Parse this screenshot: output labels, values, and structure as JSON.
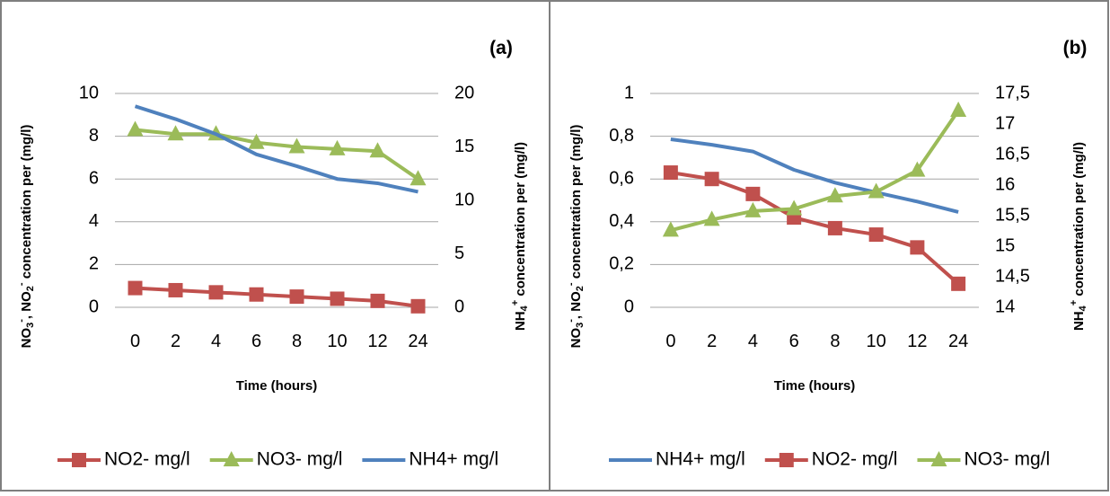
{
  "chart_data": [
    {
      "type": "line",
      "panel_label": "(a)",
      "categories": [
        "0",
        "2",
        "4",
        "6",
        "8",
        "10",
        "12",
        "24"
      ],
      "xlabel": "Time (hours)",
      "ylabel_left": "NO3-, NO2- concentration per (mg/l)",
      "ylabel_right": "NH4+ concentration per (mg/l)",
      "ylim_left": [
        0,
        10
      ],
      "ylim_right": [
        0,
        20
      ],
      "yticks_left": [
        "0",
        "2",
        "4",
        "6",
        "8",
        "10"
      ],
      "yticks_right": [
        "0",
        "5",
        "10",
        "15",
        "20"
      ],
      "grid": true,
      "legend_position": "bottom",
      "series": [
        {
          "name": "NO2- mg/l",
          "axis": "left",
          "marker": "square",
          "color": "#C0504D",
          "values": [
            0.9,
            0.8,
            0.7,
            0.6,
            0.5,
            0.4,
            0.3,
            0.05
          ]
        },
        {
          "name": "NO3- mg/l",
          "axis": "left",
          "marker": "triangle",
          "color": "#9BBB59",
          "values": [
            8.3,
            8.1,
            8.1,
            7.7,
            7.5,
            7.4,
            7.3,
            6.0
          ]
        },
        {
          "name": "NH4+ mg/l",
          "axis": "right",
          "marker": "none",
          "color": "#4F81BD",
          "values": [
            18.8,
            17.6,
            16.2,
            14.3,
            13.2,
            12.0,
            11.6,
            10.8
          ]
        }
      ]
    },
    {
      "type": "line",
      "panel_label": "(b)",
      "categories": [
        "0",
        "2",
        "4",
        "6",
        "8",
        "10",
        "12",
        "24"
      ],
      "xlabel": "Time (hours)",
      "ylabel_left": "NO3-, NO2- concentration per (mg/l)",
      "ylabel_right": "NH4+ concentration per (mg/l)",
      "ylim_left": [
        0,
        1
      ],
      "ylim_right": [
        14,
        17.5
      ],
      "yticks_left": [
        "0",
        "0,2",
        "0,4",
        "0,6",
        "0,8",
        "1"
      ],
      "yticks_right": [
        "14",
        "14,5",
        "15",
        "15,5",
        "16",
        "16,5",
        "17",
        "17,5"
      ],
      "grid": true,
      "legend_position": "bottom",
      "series": [
        {
          "name": "NH4+ mg/l",
          "axis": "right",
          "marker": "none",
          "color": "#4F81BD",
          "values": [
            16.75,
            16.66,
            16.55,
            16.25,
            16.04,
            15.88,
            15.73,
            15.56
          ]
        },
        {
          "name": "NO2- mg/l",
          "axis": "left",
          "marker": "square",
          "color": "#C0504D",
          "values": [
            0.63,
            0.6,
            0.53,
            0.42,
            0.37,
            0.34,
            0.28,
            0.11
          ]
        },
        {
          "name": "NO3- mg/l",
          "axis": "left",
          "marker": "triangle",
          "color": "#9BBB59",
          "values": [
            0.36,
            0.41,
            0.45,
            0.46,
            0.52,
            0.54,
            0.64,
            0.92
          ]
        }
      ]
    }
  ]
}
